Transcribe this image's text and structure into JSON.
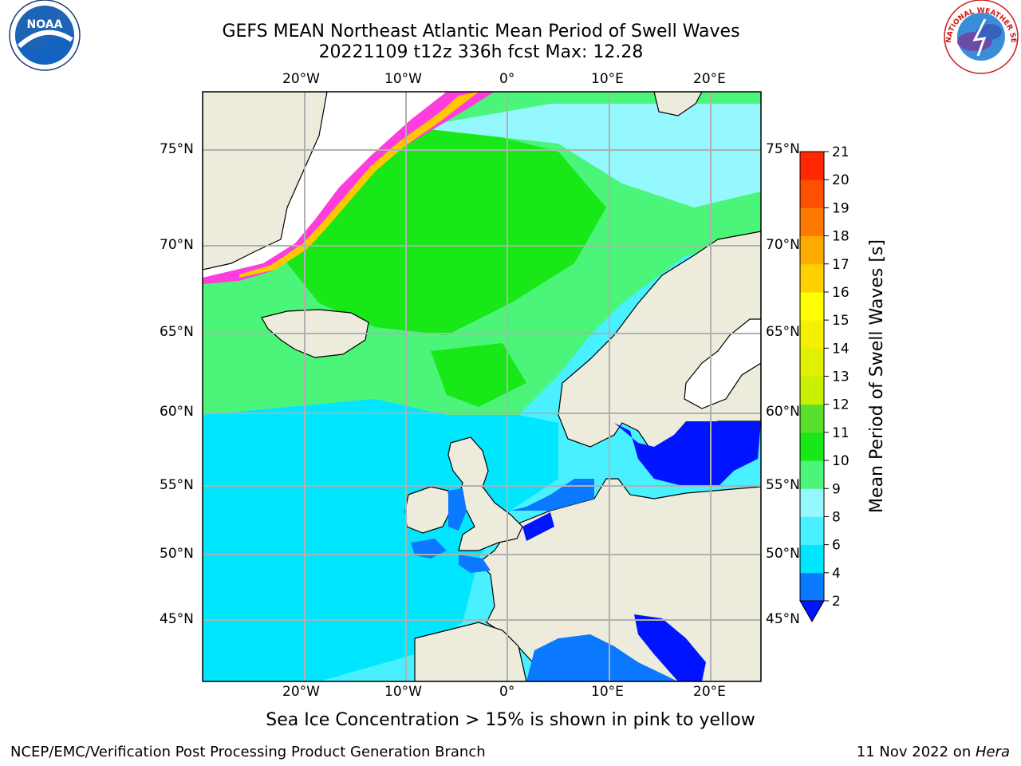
{
  "header": {
    "title": "GEFS MEAN Northeast Atlantic Mean Period of Swell Waves",
    "subtitle": "20221109 t12z 336h fcst   Max: 12.28"
  },
  "logos": {
    "left": "NOAA",
    "right": "NATIONAL WEATHER SERVICE"
  },
  "map": {
    "lon_labels": [
      "20°W",
      "10°W",
      "0°",
      "10°E",
      "20°E"
    ],
    "lat_labels": [
      "75°N",
      "70°N",
      "65°N",
      "60°N",
      "55°N",
      "50°N",
      "45°N"
    ]
  },
  "colorbar": {
    "label": "Mean Period of Swell Waves [s]",
    "ticks": [
      "2",
      "4",
      "6",
      "8",
      "9",
      "10",
      "11",
      "12",
      "13",
      "14",
      "15",
      "16",
      "17",
      "18",
      "19",
      "20",
      "21"
    ],
    "colors": [
      "#0a78ff",
      "#00e6ff",
      "#49f0ff",
      "#96f8ff",
      "#4bf57a",
      "#18e818",
      "#59e02c",
      "#c8f000",
      "#e0f000",
      "#f5f000",
      "#ffff00",
      "#ffd000",
      "#ffaa00",
      "#ff7a00",
      "#ff5000",
      "#ff2800",
      "#ff0000"
    ],
    "under_color": "#0014ff"
  },
  "note": "Sea Ice Concentration > 15% is shown in pink to yellow",
  "footer": {
    "left": "NCEP/EMC/Verification Post Processing Product Generation Branch",
    "right_date": "11 Nov 2022 on ",
    "right_host": "Hera"
  }
}
